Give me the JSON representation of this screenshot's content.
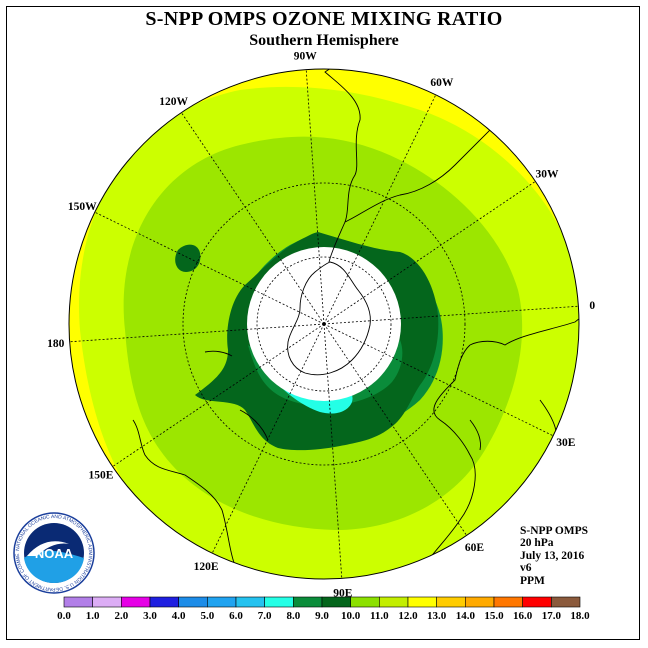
{
  "title": "S-NPP OMPS OZONE MIXING RATIO",
  "subtitle": "Southern Hemisphere",
  "info": {
    "instrument": "S-NPP OMPS",
    "level": "20 hPa",
    "date": "July 13, 2016",
    "version": "v6",
    "units": "PPM"
  },
  "logo": {
    "text": "NOAA",
    "ring_text": "NATIONAL OCEANIC AND ATMOSPHERIC ADMINISTRATION U.S. DEPARTMENT OF COMMERCE",
    "colors": {
      "outer": "#1b3f9c",
      "inner": "#0a2a74",
      "bird": "#ffffff"
    }
  },
  "longitude_labels": [
    "0",
    "30E",
    "60E",
    "90E",
    "120E",
    "150E",
    "180",
    "150W",
    "120W",
    "90W",
    "60W",
    "30W"
  ],
  "colorbar": {
    "ticks": [
      "0.0",
      "1.0",
      "2.0",
      "3.0",
      "4.0",
      "5.0",
      "6.0",
      "7.0",
      "8.0",
      "9.0",
      "10.0",
      "11.0",
      "12.0",
      "13.0",
      "14.0",
      "15.0",
      "16.0",
      "17.0",
      "18.0"
    ],
    "colors": [
      "#b27fe8",
      "#dcadf5",
      "#e600e6",
      "#1f1fe0",
      "#1c8ce8",
      "#20a3f0",
      "#25c2ef",
      "#24ffe6",
      "#0a8c3a",
      "#04661c",
      "#8ce000",
      "#c3ee00",
      "#ffff00",
      "#ffcc00",
      "#ffaa00",
      "#ff7700",
      "#ff0000",
      "#8b5a3c"
    ]
  },
  "field_colors": {
    "yellow": "#ffff00",
    "light_lime": "#ccff00",
    "lime": "#9ce600",
    "green": "#0a8c3a",
    "dark_green": "#04661c",
    "cyan": "#24ffe6",
    "no_data": "#ffffff"
  }
}
